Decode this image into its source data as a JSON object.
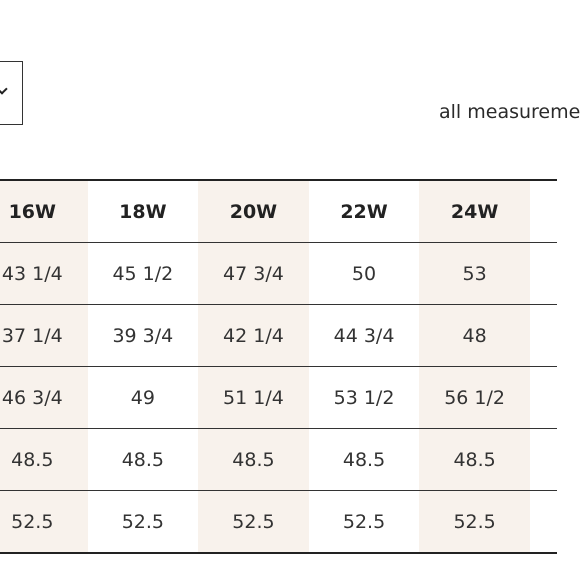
{
  "measurement_note": "all measureme",
  "table": {
    "headers": [
      "16W",
      "18W",
      "20W",
      "22W",
      "24W"
    ],
    "rows": [
      [
        "43 1/4",
        "45 1/2",
        "47 3/4",
        "50",
        "53"
      ],
      [
        "37 1/4",
        "39 3/4",
        "42 1/4",
        "44 3/4",
        "48"
      ],
      [
        "46 3/4",
        "49",
        "51 1/4",
        "53 1/2",
        "56 1/2"
      ],
      [
        "48.5",
        "48.5",
        "48.5",
        "48.5",
        "48.5"
      ],
      [
        "52.5",
        "52.5",
        "52.5",
        "52.5",
        "52.5"
      ]
    ]
  },
  "colors": {
    "shaded_column": "#f8f2ec",
    "rule": "#222222"
  },
  "icons": {
    "unit_select": "chevron-down-icon"
  }
}
